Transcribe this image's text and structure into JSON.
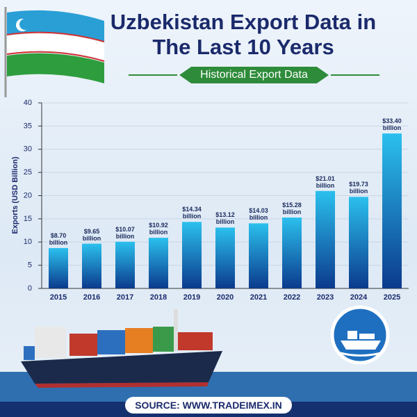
{
  "title": "Uzbekistan Export Data in The Last 10 Years",
  "subtitle": "Historical Export Data",
  "source": "SOURCE: WWW.TRADEIMEX.IN",
  "chart_data": {
    "type": "bar",
    "y_label": "Exports (USD Billion)",
    "categories": [
      "2015",
      "2016",
      "2017",
      "2018",
      "2019",
      "2020",
      "2021",
      "2022",
      "2023",
      "2024",
      "2025"
    ],
    "values": [
      8.7,
      9.65,
      10.07,
      10.92,
      14.34,
      13.12,
      14.03,
      15.28,
      21.01,
      19.73,
      33.4
    ],
    "value_labels": [
      "$8.70 billion",
      "$9.65 billion",
      "$10.07 billion",
      "$10.92 billion",
      "$14.34 billion",
      "$13.12 billion",
      "$14.03 billion",
      "$15.28 billion",
      "$21.01 billion",
      "$19.73 billion",
      "$33.40 billion"
    ],
    "color": "#0b3a8c",
    "ylim": [
      0,
      40
    ],
    "yticks": [
      0,
      5,
      10,
      15,
      20,
      25,
      30,
      35,
      40
    ],
    "grid": true
  }
}
